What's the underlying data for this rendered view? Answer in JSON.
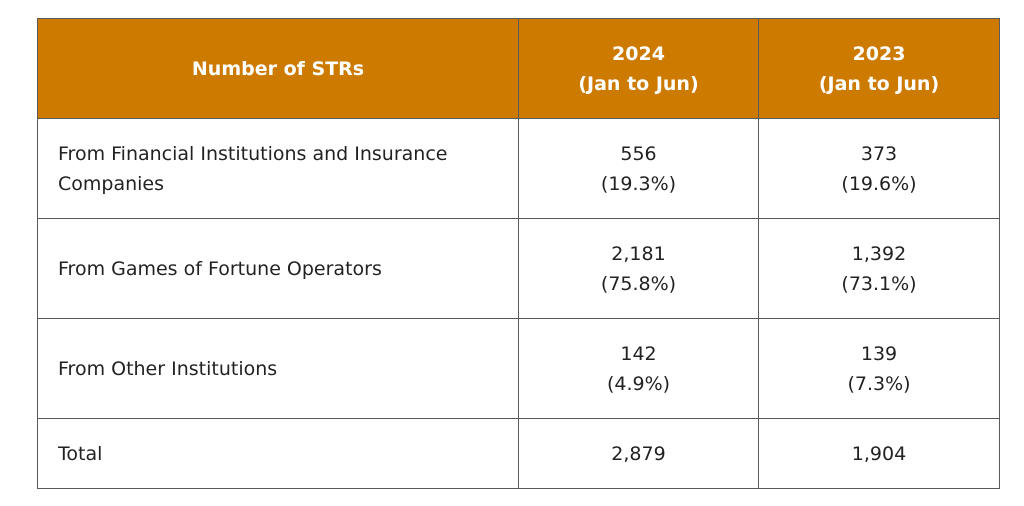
{
  "table": {
    "header": {
      "col0": "Number of STRs",
      "col1_year": "2024",
      "col1_period": "(Jan to Jun)",
      "col2_year": "2023",
      "col2_period": "(Jan to Jun)"
    },
    "rows": [
      {
        "label": "From Financial Institutions and Insurance Companies",
        "v2024": "556",
        "p2024": "(19.3%)",
        "v2023": "373",
        "p2023": "(19.6%)"
      },
      {
        "label": "From Games of Fortune Operators",
        "v2024": "2,181",
        "p2024": "(75.8%)",
        "v2023": "1,392",
        "p2023": "(73.1%)"
      },
      {
        "label": "From Other Institutions",
        "v2024": "142",
        "p2024": "(4.9%)",
        "v2023": "139",
        "p2023": "(7.3%)"
      }
    ],
    "total": {
      "label": "Total",
      "v2024": "2,879",
      "v2023": "1,904"
    },
    "colors": {
      "header_bg": "#cc7a00",
      "header_text": "#ffffff",
      "border": "#5a5a5a"
    }
  }
}
